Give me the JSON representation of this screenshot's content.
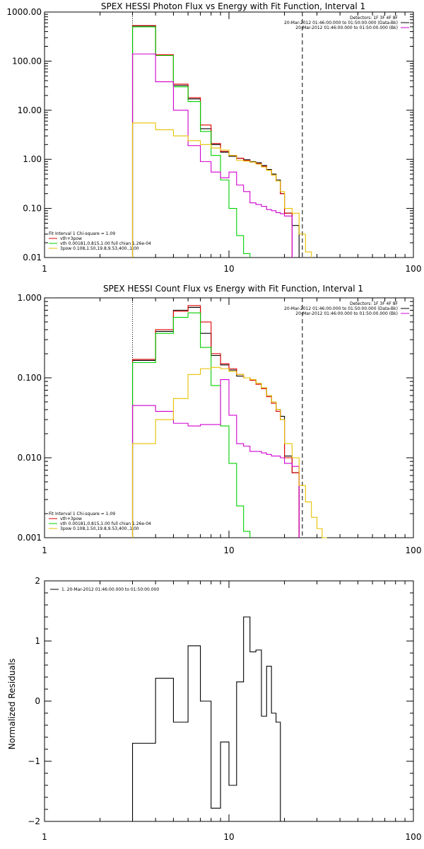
{
  "chart_data": [
    {
      "type": "line",
      "title": "SPEX HESSI Photon Flux vs Energy with Fit Function, Interval 1",
      "xscale": "log",
      "yscale": "log",
      "xlim": [
        1,
        100
      ],
      "ylim": [
        0.01,
        1000
      ],
      "xticks": [
        "1",
        "10",
        "100"
      ],
      "yticks": [
        "0.01",
        "0.10",
        "1.00",
        "10.00",
        "100.00",
        "1000.00"
      ],
      "header_lines": [
        "Detectors: 1F 3F 4F 8F",
        "20-Mar-2012 01:46:00.000 to 01:50:00.000 (Data-Bk)",
        "20-Mar-2012 01:46:00.000 to 01:50:00.000 (Bk)"
      ],
      "fit_legend": {
        "header": "Fit Interval 1   Chi-square = 1.09",
        "entries": [
          {
            "label": "vth+3pow",
            "color": "#e00000"
          },
          {
            "label": "vth 0.00181,0.815,1.00   full chian 1.26e-04",
            "color": "#00d000"
          },
          {
            "label": "3pow 0.108,1.50,19.8,9.53,400.,1.00",
            "color": "#e8c000"
          }
        ]
      },
      "vlines": [
        {
          "x": 3.0,
          "style": "dotted",
          "color": "#000000"
        },
        {
          "x": 25.0,
          "style": "dashed",
          "color": "#000000"
        }
      ],
      "edges": [
        3,
        4,
        5,
        6,
        7,
        8,
        9,
        10,
        11,
        12,
        13,
        14,
        15,
        16,
        17,
        18,
        19,
        20,
        22,
        24,
        26,
        28,
        30
      ],
      "series": [
        {
          "name": "Data-Bk",
          "color": "#000000",
          "values": [
            520,
            130,
            32,
            17,
            4.2,
            2.0,
            1.4,
            1.15,
            1.05,
            0.98,
            0.9,
            0.85,
            0.75,
            0.62,
            0.5,
            0.38,
            0.2,
            0.08,
            0.045,
            null,
            null,
            null
          ]
        },
        {
          "name": "vth+3pow",
          "color": "#e00000",
          "values": [
            530,
            135,
            34,
            18,
            5.0,
            2.1,
            1.45,
            1.2,
            1.05,
            0.95,
            0.88,
            0.82,
            0.72,
            0.6,
            0.48,
            0.36,
            0.2,
            0.08,
            null,
            null,
            null,
            null
          ]
        },
        {
          "name": "vth",
          "color": "#00d000",
          "values": [
            500,
            130,
            30,
            15,
            3.7,
            1.2,
            0.38,
            0.1,
            0.028,
            0.012,
            null,
            null,
            null,
            null,
            null,
            null,
            null,
            null,
            null,
            null,
            null,
            null
          ]
        },
        {
          "name": "Bk",
          "color": "#d000d0",
          "values": [
            140,
            38,
            10,
            1.9,
            0.9,
            0.55,
            0.42,
            0.55,
            0.3,
            0.22,
            0.13,
            0.12,
            0.11,
            0.095,
            0.09,
            0.082,
            0.078,
            0.07,
            null,
            null,
            null,
            null
          ]
        },
        {
          "name": "3pow",
          "color": "#e8c000",
          "values": [
            5.5,
            4.0,
            3.0,
            2.4,
            2.0,
            1.7,
            1.55,
            1.2,
            0.95,
            0.92,
            0.88,
            0.8,
            0.7,
            0.6,
            0.48,
            0.36,
            0.22,
            0.1,
            0.08,
            0.03,
            0.013,
            null
          ]
        }
      ]
    },
    {
      "type": "line",
      "title": "SPEX HESSI Count Flux vs Energy with Fit Function, Interval 1",
      "xscale": "log",
      "yscale": "log",
      "xlim": [
        1,
        100
      ],
      "ylim": [
        0.001,
        1.0
      ],
      "xticks": [
        "1",
        "10",
        "100"
      ],
      "yticks": [
        "0.001",
        "0.010",
        "0.100",
        "1.000"
      ],
      "header_lines": [
        "Detectors: 1F 3F 4F 8F",
        "20-Mar-2012 01:46:00.000 to 01:50:00.000 (Data-Bk)",
        "20-Mar-2012 01:46:00.000 to 01:50:00.000 (Bk)"
      ],
      "fit_legend": {
        "header": "Fit Interval 1   Chi-square = 1.09",
        "entries": [
          {
            "label": "vth+3pow",
            "color": "#e00000"
          },
          {
            "label": "vth 0.00181,0.815,1.00   full chian 1.26e-04",
            "color": "#00d000"
          },
          {
            "label": "3pow 0.108,1.50,19.8,9.53,400.,1.00",
            "color": "#e8c000"
          }
        ]
      },
      "vlines": [
        {
          "x": 3.0,
          "style": "dotted",
          "color": "#000000"
        },
        {
          "x": 25.0,
          "style": "dashed",
          "color": "#000000"
        }
      ],
      "edges": [
        3,
        4,
        5,
        6,
        7,
        8,
        9,
        10,
        11,
        12,
        13,
        14,
        15,
        16,
        17,
        18,
        19,
        20,
        22,
        24,
        26,
        28,
        30,
        32,
        34
      ],
      "series": [
        {
          "name": "Data-Bk",
          "color": "#000000",
          "values": [
            0.165,
            0.38,
            0.7,
            0.76,
            0.36,
            0.19,
            0.145,
            0.125,
            0.105,
            0.1,
            0.095,
            0.085,
            0.075,
            0.06,
            0.05,
            0.04,
            0.033,
            0.0105,
            0.0065,
            null,
            null,
            null,
            null,
            null
          ]
        },
        {
          "name": "vth+3pow",
          "color": "#e00000",
          "values": [
            0.17,
            0.4,
            0.68,
            0.8,
            0.5,
            0.2,
            0.15,
            0.13,
            0.11,
            0.1,
            0.093,
            0.083,
            0.073,
            0.058,
            0.048,
            0.038,
            0.03,
            0.01,
            0.0065,
            null,
            null,
            null,
            null,
            null
          ]
        },
        {
          "name": "vth",
          "color": "#00d000",
          "values": [
            0.155,
            0.36,
            0.57,
            0.65,
            0.24,
            0.08,
            0.025,
            0.0085,
            0.0025,
            0.0012,
            null,
            null,
            null,
            null,
            null,
            null,
            null,
            null,
            null,
            null,
            null,
            null,
            null,
            null
          ]
        },
        {
          "name": "Bk",
          "color": "#d000d0",
          "values": [
            0.045,
            0.038,
            0.027,
            0.025,
            0.026,
            0.026,
            0.095,
            0.034,
            0.015,
            0.014,
            0.012,
            0.012,
            0.0115,
            0.011,
            0.0105,
            0.0105,
            0.01,
            0.0085,
            0.0078,
            null,
            null,
            null,
            null,
            null
          ]
        },
        {
          "name": "3pow",
          "color": "#e8c000",
          "values": [
            0.015,
            0.03,
            0.055,
            0.11,
            0.13,
            0.135,
            0.13,
            0.12,
            0.11,
            0.1,
            0.095,
            0.085,
            0.075,
            0.06,
            0.05,
            0.04,
            0.03,
            0.015,
            0.01,
            0.0045,
            0.0028,
            0.0018,
            0.0013,
            0.001
          ]
        }
      ]
    },
    {
      "type": "line",
      "title": "",
      "xscale": "log",
      "yscale": "linear",
      "xlim": [
        1,
        100
      ],
      "ylim": [
        -2,
        2
      ],
      "ylabel": "Normalized Residuals",
      "xticks": [
        "1",
        "10",
        "100"
      ],
      "yticks": [
        "−2",
        "−1",
        "0",
        "1",
        "2"
      ],
      "legend": {
        "label": "1. 20-Mar-2012 01:46:00.000 to 01:50:00.000",
        "color": "#000000"
      },
      "edges": [
        3,
        4,
        5,
        6,
        7,
        8,
        9,
        10,
        11,
        12,
        13,
        14,
        15,
        16,
        17,
        18,
        19,
        20,
        22,
        24,
        26
      ],
      "series": [
        {
          "name": "1. 20-Mar-2012 01:46:00.000 to 01:50:00.000",
          "color": "#000000",
          "values": [
            -0.7,
            0.38,
            -0.35,
            0.92,
            0.0,
            -1.78,
            -0.68,
            -1.4,
            0.32,
            1.4,
            0.82,
            0.85,
            -0.25,
            0.58,
            -0.2,
            -0.35,
            null,
            null,
            null,
            null
          ]
        }
      ]
    }
  ]
}
